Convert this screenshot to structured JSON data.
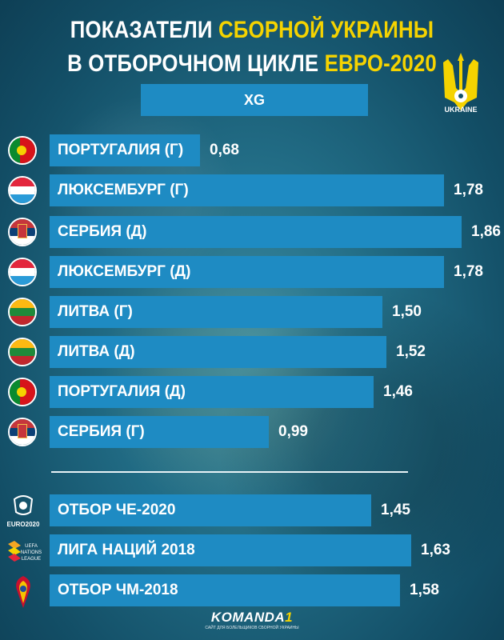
{
  "title": {
    "line1_white": "ПОКАЗАТЕЛИ ",
    "line1_yellow": "СБОРНОЙ УКРАИНЫ",
    "line2_white": "В ОТБОРОЧНОМ ЦИКЛЕ ",
    "line2_yellow": "ЕВРО-2020"
  },
  "metric_label": "XG",
  "logo": {
    "text": "UKRAINE",
    "icon": "ukraine-trident-icon"
  },
  "colors": {
    "bar": "#1e8bc3",
    "accent": "#f5d300",
    "text": "#ffffff"
  },
  "chart_data": {
    "type": "bar",
    "orientation": "horizontal",
    "title": "",
    "xlabel": "XG",
    "xlim": [
      0,
      1.9
    ],
    "categories": [
      "ПОРТУГАЛИЯ (Г)",
      "ЛЮКСЕМБУРГ (Г)",
      "СЕРБИЯ (Д)",
      "ЛЮКСЕМБУРГ (Д)",
      "ЛИТВА (Г)",
      "ЛИТВА (Д)",
      "ПОРТУГАЛИЯ (Д)",
      "СЕРБИЯ (Г)",
      "ОТБОР ЧЕ-2020",
      "ЛИГА НАЦИЙ 2018",
      "ОТБОР ЧМ-2018"
    ],
    "values": [
      0.68,
      1.78,
      1.86,
      1.78,
      1.5,
      1.52,
      1.46,
      0.99,
      1.45,
      1.63,
      1.58
    ],
    "value_labels": [
      "0,68",
      "1,78",
      "1,86",
      "1,78",
      "1,50",
      "1,52",
      "1,46",
      "0,99",
      "1,45",
      "1,63",
      "1,58"
    ],
    "icons": [
      "portugal-flag-icon",
      "luxembourg-flag-icon",
      "serbia-flag-icon",
      "luxembourg-flag-icon",
      "lithuania-flag-icon",
      "lithuania-flag-icon",
      "portugal-flag-icon",
      "serbia-flag-icon",
      "euro2020-logo-icon",
      "nations-league-logo-icon",
      "world-cup-2018-logo-icon"
    ]
  },
  "summary_icon_texts": [
    "EURO2020",
    "UEFA NATIONS LEAGUE"
  ],
  "footer": {
    "brand": "KOMANDA",
    "brand_number": "1",
    "tagline": "САЙТ ДЛЯ БОЛЕЛЬЩИКОВ СБОРНОЙ УКРАИНЫ"
  }
}
